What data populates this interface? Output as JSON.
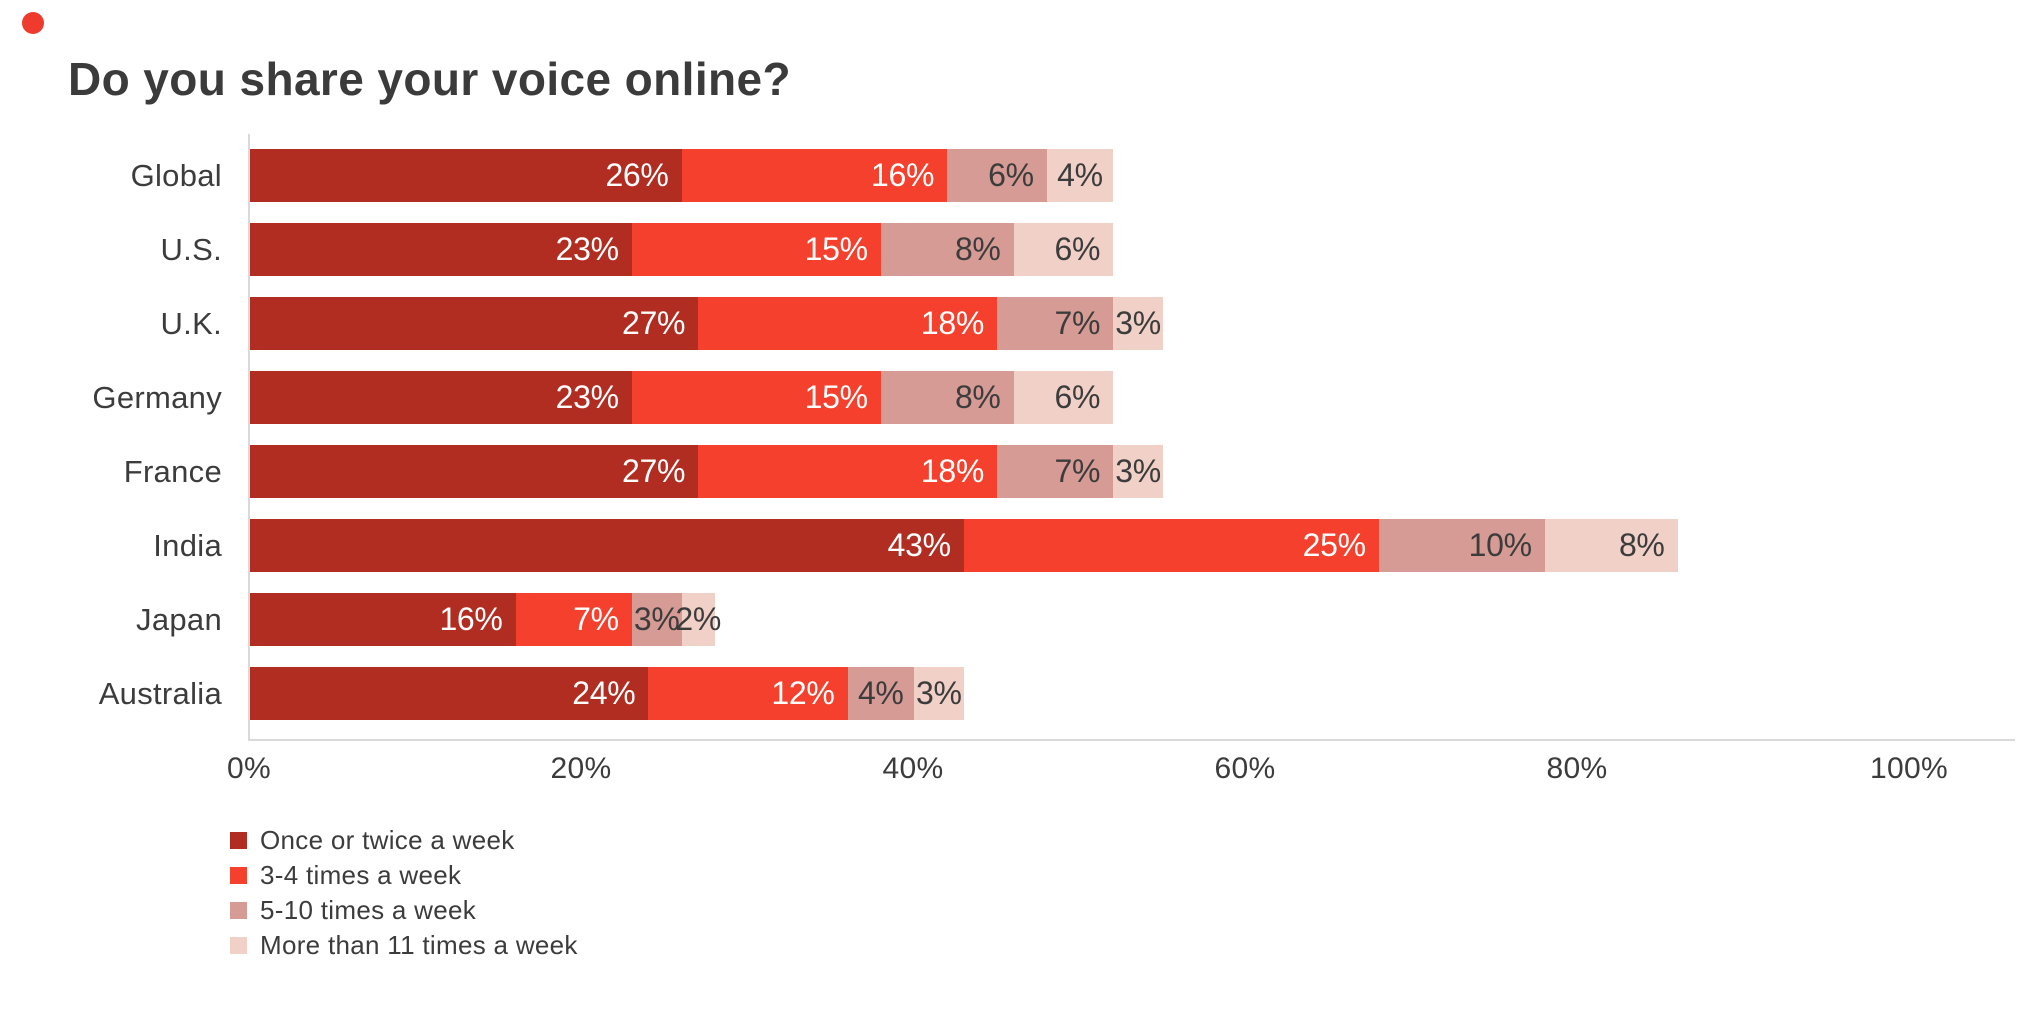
{
  "decor": {
    "recording_dot_color": "#EE3B2E"
  },
  "colors": {
    "title_text": "#3B3B3B",
    "axis_line": "#D9D9D9",
    "axis_text": "#3C3C3C"
  },
  "chart_data": {
    "type": "bar",
    "orientation": "horizontal",
    "stacked": true,
    "title": "Do you share your voice online?",
    "categories": [
      "Global",
      "U.S.",
      "U.K.",
      "Germany",
      "France",
      "India",
      "Japan",
      "Australia"
    ],
    "series": [
      {
        "name": "Once or twice a week",
        "color": "#B22D21",
        "label_color": "#FFFFFF",
        "values": [
          26,
          23,
          27,
          23,
          27,
          43,
          16,
          24
        ]
      },
      {
        "name": "3-4 times a week",
        "color": "#F4402C",
        "label_color": "#FFFFFF",
        "values": [
          16,
          15,
          18,
          15,
          18,
          25,
          7,
          12
        ]
      },
      {
        "name": "5-10 times a week",
        "color": "#D69B94",
        "label_color": "#3C3C3C",
        "values": [
          6,
          8,
          7,
          8,
          7,
          10,
          3,
          4
        ]
      },
      {
        "name": "More than 11 times a week",
        "color": "#F0D0C7",
        "label_color": "#3C3C3C",
        "values": [
          4,
          6,
          3,
          6,
          3,
          8,
          2,
          3
        ]
      }
    ],
    "value_label_format": "{v}%",
    "x_ticks": [
      "0%",
      "20%",
      "40%",
      "60%",
      "80%",
      "100%"
    ],
    "xlim": [
      0,
      100
    ],
    "grid": false,
    "legend_position": "bottom-left"
  }
}
